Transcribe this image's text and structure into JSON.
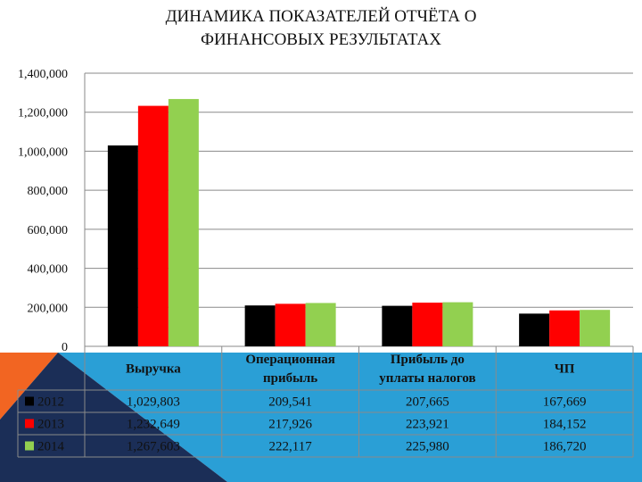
{
  "title": {
    "line1": "ДИНАМИКА ПОКАЗАТЕЛЕЙ ОТЧЁТА О",
    "line2": "ФИНАНСОВЫХ РЕЗУЛЬТАТАХ"
  },
  "colors": {
    "deco_orange": "#F26522",
    "deco_blue": "#2A9FD6",
    "deco_dark": "#1B2E57"
  },
  "chart_data": {
    "type": "bar",
    "title": "ДИНАМИКА ПОКАЗАТЕЛЕЙ ОТЧЁТА О ФИНАНСОВЫХ РЕЗУЛЬТАТАХ",
    "categories": [
      [
        "Выручка"
      ],
      [
        "Операционная",
        "прибыль"
      ],
      [
        "Прибыль до",
        "уплаты налогов"
      ],
      [
        "ЧП"
      ]
    ],
    "series": [
      {
        "name": "2012",
        "color": "#000000",
        "values": [
          1029803,
          209541,
          207665,
          167669
        ],
        "labels": [
          "1,029,803",
          "209,541",
          "207,665",
          "167,669"
        ]
      },
      {
        "name": "2013",
        "color": "#FF0000",
        "values": [
          1232649,
          217926,
          223921,
          184152
        ],
        "labels": [
          "1,232,649",
          "217,926",
          "223,921",
          "184,152"
        ]
      },
      {
        "name": "2014",
        "color": "#92D050",
        "values": [
          1267603,
          222117,
          225980,
          186720
        ],
        "labels": [
          "1,267,603",
          "222,117",
          "225,980",
          "186,720"
        ]
      }
    ],
    "y_ticks": [
      0,
      200000,
      400000,
      600000,
      800000,
      1000000,
      1200000,
      1400000
    ],
    "y_tick_labels": [
      "0",
      "200,000",
      "400,000",
      "600,000",
      "800,000",
      "1,000,000",
      "1,200,000",
      "1,400,000"
    ],
    "ylim": [
      0,
      1400000
    ],
    "grid": true,
    "legend": "data-table",
    "xlabel": "",
    "ylabel": ""
  }
}
